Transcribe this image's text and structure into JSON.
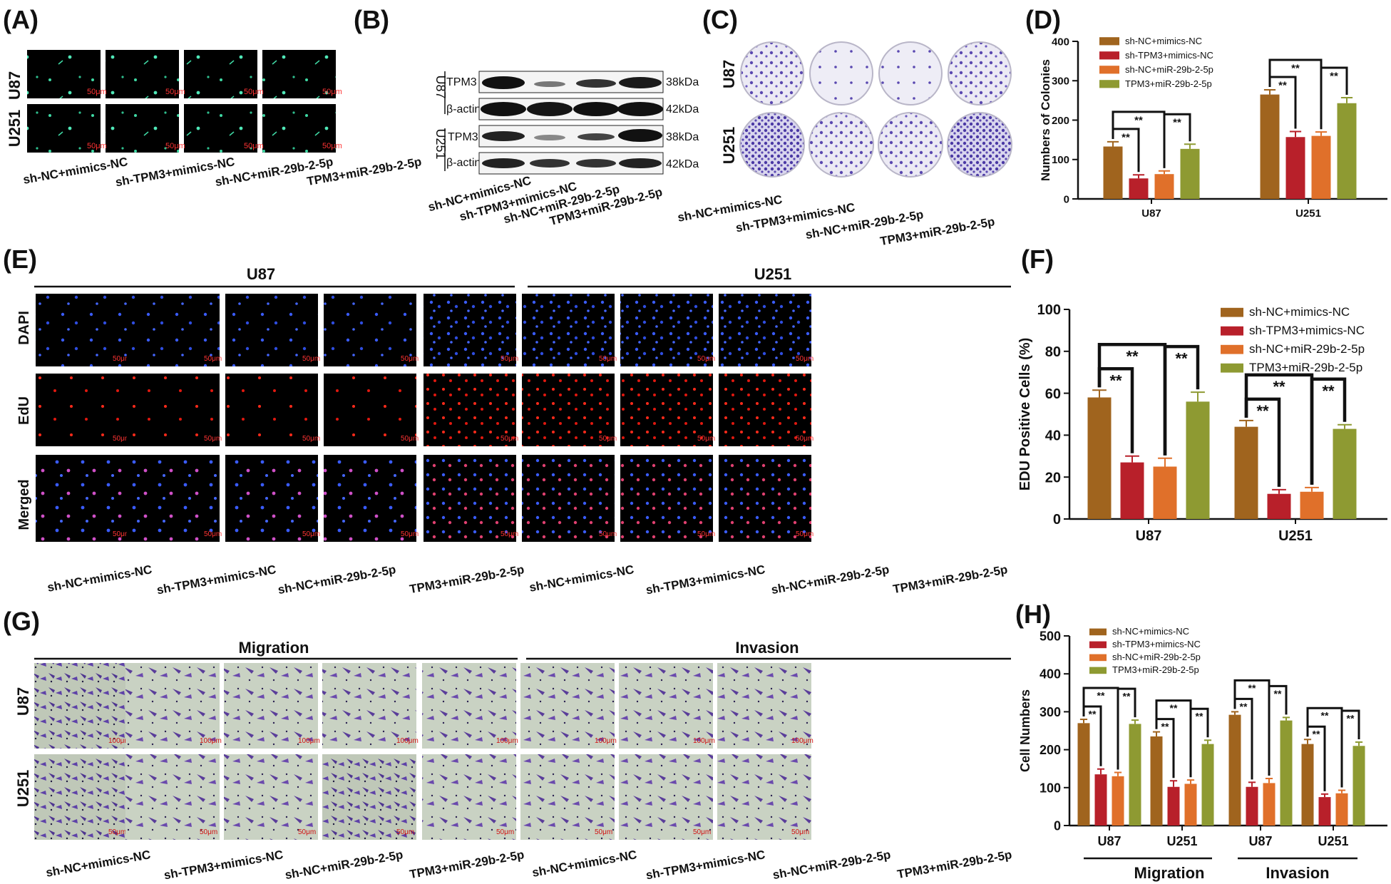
{
  "panel_letters": {
    "A": "(A)",
    "B": "(B)",
    "C": "(C)",
    "D": "(D)",
    "E": "(E)",
    "F": "(F)",
    "G": "(G)",
    "H": "(H)"
  },
  "groups": [
    "sh-NC+mimics-NC",
    "sh-TPM3+mimics-NC",
    "sh-NC+miR-29b-2-5p",
    "TPM3+miR-29b-2-5p"
  ],
  "group_colors": [
    "#a0641e",
    "#b8202a",
    "#e0702a",
    "#8e9a32"
  ],
  "cell_lines": [
    "U87",
    "U251"
  ],
  "scale_50": "50μm",
  "scale_100": "100μm",
  "western": {
    "bands": [
      "TPM3",
      "β-actin",
      "TPM3",
      "β-actin"
    ],
    "kda": [
      "38kDa",
      "42kDa",
      "38kDa",
      "42kDa"
    ]
  },
  "edu_rows": [
    "DAPI",
    "EdU",
    "Merged"
  ],
  "migration_headers": [
    "Migration",
    "Invasion"
  ],
  "sig": "**",
  "chart_data": [
    {
      "panel": "D",
      "type": "bar",
      "ylabel": "Numbers of Colonies",
      "ylim": [
        0,
        400
      ],
      "yticks": [
        0,
        100,
        200,
        300,
        400
      ],
      "categories": [
        "U87",
        "U251"
      ],
      "series": [
        {
          "name": "sh-NC+mimics-NC",
          "values": [
            133,
            265
          ],
          "errors": [
            12,
            12
          ]
        },
        {
          "name": "sh-TPM3+mimics-NC",
          "values": [
            52,
            157
          ],
          "errors": [
            9,
            14
          ]
        },
        {
          "name": "sh-NC+miR-29b-2-5p",
          "values": [
            63,
            160
          ],
          "errors": [
            8,
            10
          ]
        },
        {
          "name": "TPM3+miR-29b-2-5p",
          "values": [
            127,
            243
          ],
          "errors": [
            12,
            14
          ]
        }
      ]
    },
    {
      "panel": "F",
      "type": "bar",
      "ylabel": "EDU Positive Cells (%)",
      "ylim": [
        0,
        100
      ],
      "yticks": [
        0,
        20,
        40,
        60,
        80,
        100
      ],
      "categories": [
        "U87",
        "U251"
      ],
      "series": [
        {
          "name": "sh-NC+mimics-NC",
          "values": [
            58,
            44
          ],
          "errors": [
            3.5,
            3
          ]
        },
        {
          "name": "sh-TPM3+mimics-NC",
          "values": [
            27,
            12
          ],
          "errors": [
            3,
            2
          ]
        },
        {
          "name": "sh-NC+miR-29b-2-5p",
          "values": [
            25,
            13
          ],
          "errors": [
            4,
            2
          ]
        },
        {
          "name": "TPM3+miR-29b-2-5p",
          "values": [
            56,
            43
          ],
          "errors": [
            4.5,
            2
          ]
        }
      ]
    },
    {
      "panel": "H",
      "type": "bar",
      "ylabel": "Cell Numbers",
      "ylim": [
        0,
        500
      ],
      "yticks": [
        0,
        100,
        200,
        300,
        400,
        500
      ],
      "categories": [
        "U87",
        "U251",
        "U87",
        "U251"
      ],
      "category_groups": [
        "Migration",
        "Invasion"
      ],
      "series": [
        {
          "name": "sh-NC+mimics-NC",
          "values": [
            270,
            235,
            292,
            215
          ],
          "errors": [
            10,
            12,
            8,
            12
          ]
        },
        {
          "name": "sh-TPM3+mimics-NC",
          "values": [
            135,
            102,
            102,
            75
          ],
          "errors": [
            14,
            16,
            12,
            8
          ]
        },
        {
          "name": "sh-NC+miR-29b-2-5p",
          "values": [
            130,
            110,
            112,
            85
          ],
          "errors": [
            10,
            10,
            12,
            8
          ]
        },
        {
          "name": "TPM3+miR-29b-2-5p",
          "values": [
            268,
            215,
            277,
            210
          ],
          "errors": [
            10,
            10,
            8,
            10
          ]
        }
      ]
    }
  ]
}
